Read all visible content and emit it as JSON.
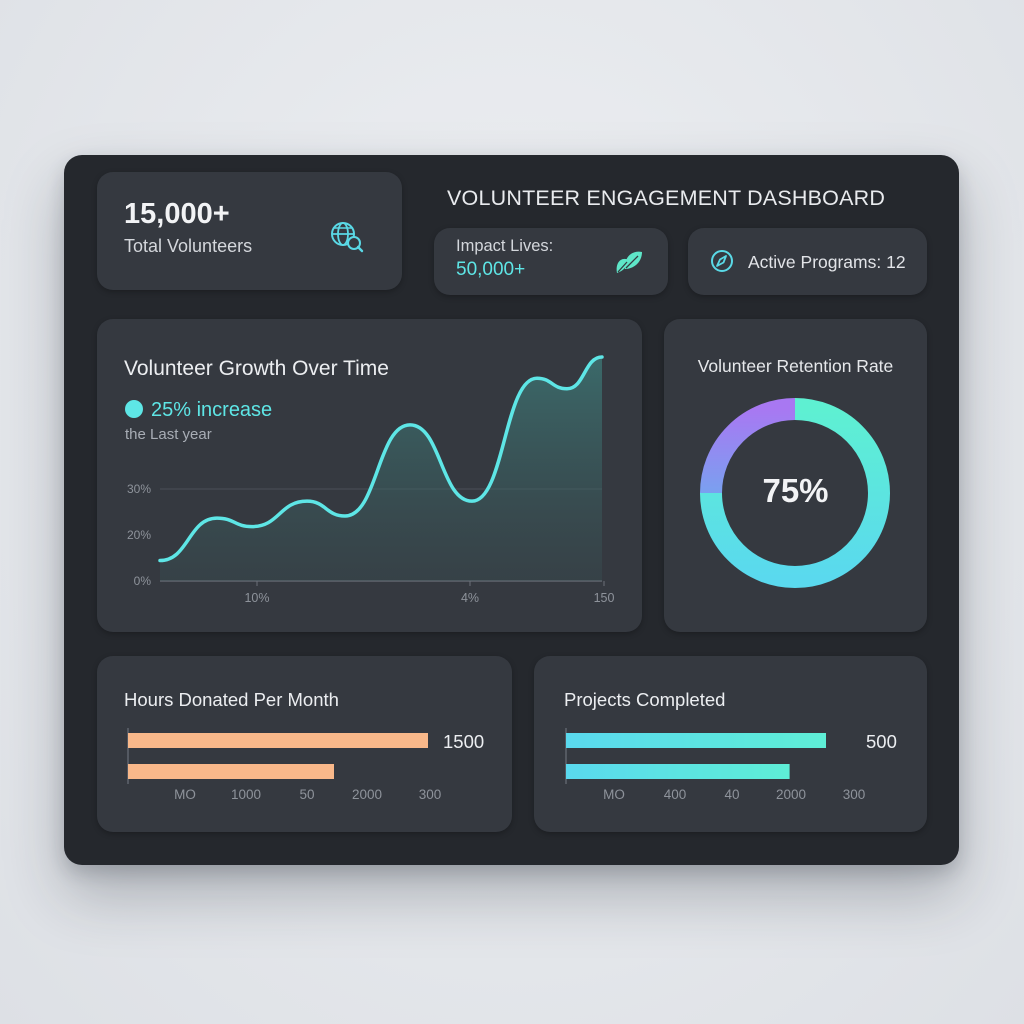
{
  "dashboard": {
    "title": "VOLUNTEER ENGAGEMENT DASHBOARD"
  },
  "total_card": {
    "value": "15,000+",
    "label": "Total Volunteers",
    "icon": "globe-search-icon"
  },
  "impact_card": {
    "label": "Impact Lives:",
    "value": "50,000+",
    "icon": "leaf-icon"
  },
  "programs_card": {
    "label": "Active Programs: 12",
    "icon": "compass-icon"
  },
  "growth": {
    "title": "Volunteer Growth Over Time",
    "increase": "25% increase",
    "subtitle": "the Last year"
  },
  "retention": {
    "title": "Volunteer Retention Rate",
    "value_label": "75%"
  },
  "hours": {
    "title": "Hours Donated Per Month",
    "value_label": "1500"
  },
  "projects": {
    "title": "Projects Completed",
    "value_label": "500"
  },
  "colors": {
    "accent_teal": "#5ee6e6",
    "accent_purple": "#a47cf2",
    "bar_orange": "#f9b88a",
    "card_bg": "#353940",
    "frame_bg": "#25282d"
  },
  "chart_data": [
    {
      "type": "area",
      "title": "Volunteer Growth Over Time",
      "y_ticks": [
        "0%",
        "20%",
        "30%"
      ],
      "x_ticks": [
        "10%",
        "4%",
        "150"
      ],
      "grid": "horizontal line at 30%",
      "series": [
        {
          "values": [
            0.04,
            0.24,
            0.2,
            0.32,
            0.25,
            0.68,
            0.32,
            0.9,
            0.85,
            1.0
          ]
        }
      ]
    },
    {
      "type": "pie",
      "title": "Volunteer Retention Rate",
      "center_label": "75%",
      "values": [
        75,
        25
      ]
    },
    {
      "type": "bar",
      "title": "Hours Donated Per Month",
      "orientation": "horizontal",
      "values": [
        1500,
        1030
      ],
      "value_label": "1500",
      "tick_labels": [
        "MO",
        "1000",
        "50",
        "2000",
        "300"
      ]
    },
    {
      "type": "bar",
      "title": "Projects Completed",
      "orientation": "horizontal",
      "values": [
        500,
        430
      ],
      "value_label": "500",
      "tick_labels": [
        "MO",
        "400",
        "40",
        "2000",
        "300"
      ]
    }
  ]
}
